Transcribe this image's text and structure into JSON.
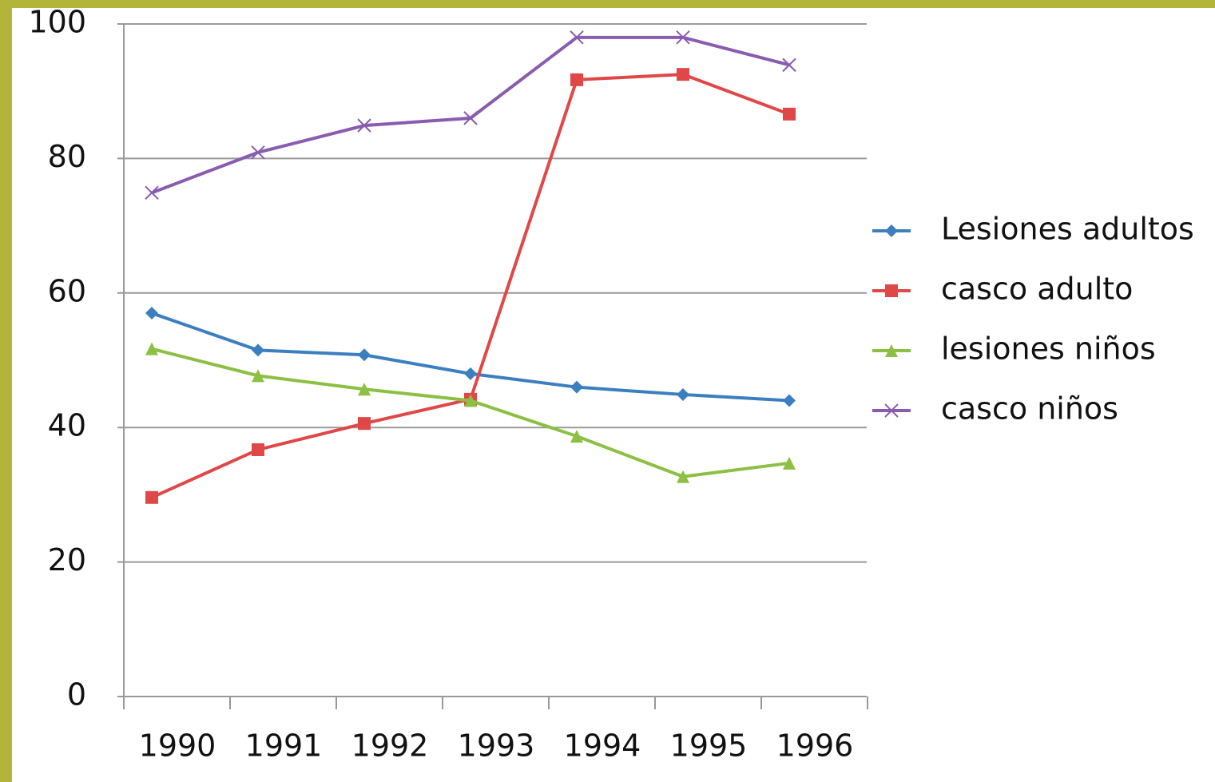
{
  "chart_data": {
    "type": "line",
    "categories": [
      "1990",
      "1991",
      "1992",
      "1993",
      "1994",
      "1995",
      "1996"
    ],
    "series": [
      {
        "name": "Lesiones adultos",
        "color": "#3c7fc0",
        "marker": "diamond",
        "values": [
          57,
          51.5,
          50.8,
          48,
          46,
          44.9,
          44
        ]
      },
      {
        "name": "casco adulto",
        "color": "#e04848",
        "marker": "square",
        "values": [
          29.6,
          36.7,
          40.6,
          44.2,
          91.7,
          92.5,
          86.6
        ]
      },
      {
        "name": "lesiones niños",
        "color": "#8cc043",
        "marker": "triangle",
        "values": [
          51.7,
          47.7,
          45.7,
          44,
          38.7,
          32.7,
          34.7
        ]
      },
      {
        "name": "casco niños",
        "color": "#8a5cb0",
        "marker": "x",
        "values": [
          74.9,
          80.9,
          84.9,
          86,
          98,
          98,
          93.9
        ]
      }
    ],
    "ylim": [
      0,
      100
    ],
    "yticks": [
      0,
      20,
      40,
      60,
      80,
      100
    ],
    "grid": true,
    "legend": "right"
  }
}
